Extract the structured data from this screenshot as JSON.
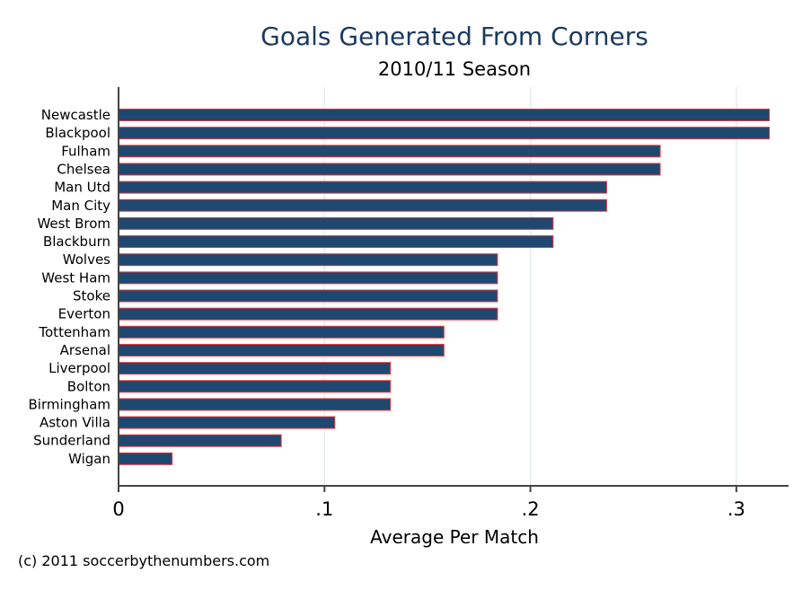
{
  "chart_data": {
    "type": "bar",
    "orientation": "horizontal",
    "title": "Goals Generated From Corners",
    "subtitle": "2010/11 Season",
    "xlabel": "Average Per Match",
    "ylabel": "",
    "xlim": [
      0,
      0.33
    ],
    "xticks": [
      0,
      0.1,
      0.2,
      0.3
    ],
    "xtick_labels": [
      "0",
      ".1",
      ".2",
      ".3"
    ],
    "grid": true,
    "categories": [
      "Newcastle",
      "Blackpool",
      "Fulham",
      "Chelsea",
      "Man Utd",
      "Man City",
      "West Brom",
      "Blackburn",
      "Wolves",
      "West Ham",
      "Stoke",
      "Everton",
      "Tottenham",
      "Arsenal",
      "Liverpool",
      "Bolton",
      "Birmingham",
      "Aston Villa",
      "Sunderland",
      "Wigan"
    ],
    "values": [
      0.316,
      0.316,
      0.263,
      0.263,
      0.237,
      0.237,
      0.211,
      0.211,
      0.184,
      0.184,
      0.184,
      0.184,
      0.158,
      0.158,
      0.132,
      0.132,
      0.132,
      0.105,
      0.079,
      0.026
    ],
    "bar_color": "#1f4870",
    "bar_edge_color": "#e8343a"
  },
  "credit": "(c) 2011 soccerbythenumbers.com"
}
